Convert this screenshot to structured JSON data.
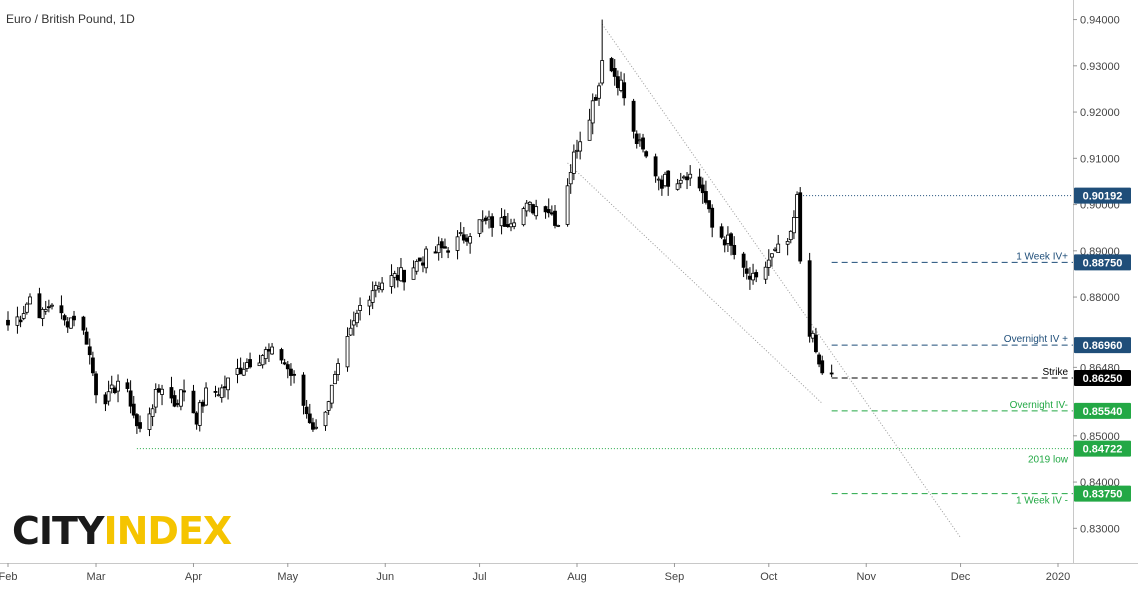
{
  "window": {
    "title": "Euro / British Pound, 1D"
  },
  "logo": {
    "part1": "CITY",
    "part2": "INDEX"
  },
  "chart_data": {
    "type": "candlestick",
    "title": "Euro / British Pound, 1D",
    "instrument": "Euro / British Pound",
    "interval": "1D",
    "ylim": [
      0.8225,
      0.9425
    ],
    "y_ticks": [
      "0.83000",
      "0.84000",
      "0.85000",
      "0.86480",
      "0.88000",
      "0.89000",
      "0.90000",
      "0.91000",
      "0.92000",
      "0.93000",
      "0.94000"
    ],
    "x_ticks": [
      "Feb",
      "Mar",
      "Apr",
      "May",
      "Jun",
      "Jul",
      "Aug",
      "Sep",
      "Oct",
      "Nov",
      "Dec",
      "2020"
    ],
    "grid": false,
    "colors": {
      "up_candle": "#ffffff",
      "down_candle": "#000000",
      "navy": "#1f4e79",
      "green": "#23a845",
      "dashed_black": "#333333"
    },
    "price_path": [
      [
        "2019-02-01",
        0.874
      ],
      [
        "2019-02-05",
        0.876
      ],
      [
        "2019-02-08",
        0.88
      ],
      [
        "2019-02-12",
        0.876
      ],
      [
        "2019-02-15",
        0.879
      ],
      [
        "2019-02-19",
        0.8745
      ],
      [
        "2019-02-22",
        0.876
      ],
      [
        "2019-02-26",
        0.871
      ],
      [
        "2019-03-01",
        0.86
      ],
      [
        "2019-03-05",
        0.858
      ],
      [
        "2019-03-08",
        0.862
      ],
      [
        "2019-03-12",
        0.8575
      ],
      [
        "2019-03-14",
        0.852
      ],
      [
        "2019-03-15",
        0.851
      ],
      [
        "2019-03-19",
        0.857
      ],
      [
        "2019-03-22",
        0.861
      ],
      [
        "2019-03-26",
        0.857
      ],
      [
        "2019-03-29",
        0.86
      ],
      [
        "2019-04-02",
        0.854
      ],
      [
        "2019-04-05",
        0.859
      ],
      [
        "2019-04-10",
        0.86
      ],
      [
        "2019-04-15",
        0.864
      ],
      [
        "2019-04-18",
        0.866
      ],
      [
        "2019-04-24",
        0.868
      ],
      [
        "2019-04-29",
        0.867
      ],
      [
        "2019-05-03",
        0.862
      ],
      [
        "2019-05-07",
        0.855
      ],
      [
        "2019-05-10",
        0.851
      ],
      [
        "2019-05-15",
        0.86
      ],
      [
        "2019-05-20",
        0.87
      ],
      [
        "2019-05-24",
        0.878
      ],
      [
        "2019-05-29",
        0.883
      ],
      [
        "2019-06-03",
        0.884
      ],
      [
        "2019-06-07",
        0.885
      ],
      [
        "2019-06-12",
        0.888
      ],
      [
        "2019-06-18",
        0.89
      ],
      [
        "2019-06-24",
        0.892
      ],
      [
        "2019-07-01",
        0.896
      ],
      [
        "2019-07-08",
        0.896
      ],
      [
        "2019-07-15",
        0.899
      ],
      [
        "2019-07-22",
        0.9
      ],
      [
        "2019-07-26",
        0.896
      ],
      [
        "2019-07-29",
        0.905
      ],
      [
        "2019-08-01",
        0.913
      ],
      [
        "2019-08-05",
        0.92
      ],
      [
        "2019-08-08",
        0.926
      ],
      [
        "2019-08-09",
        0.9325
      ],
      [
        "2019-08-12",
        0.929
      ],
      [
        "2019-08-15",
        0.926
      ],
      [
        "2019-08-19",
        0.915
      ],
      [
        "2019-08-23",
        0.91
      ],
      [
        "2019-08-28",
        0.905
      ],
      [
        "2019-09-02",
        0.906
      ],
      [
        "2019-09-05",
        0.907
      ],
      [
        "2019-09-10",
        0.903
      ],
      [
        "2019-09-13",
        0.895
      ],
      [
        "2019-09-18",
        0.892
      ],
      [
        "2019-09-23",
        0.885
      ],
      [
        "2019-09-27",
        0.883
      ],
      [
        "2019-10-01",
        0.888
      ],
      [
        "2019-10-04",
        0.89
      ],
      [
        "2019-10-08",
        0.8925
      ],
      [
        "2019-10-10",
        0.901
      ],
      [
        "2019-10-11",
        0.888
      ],
      [
        "2019-10-14",
        0.873
      ],
      [
        "2019-10-16",
        0.868
      ],
      [
        "2019-10-17",
        0.865
      ],
      [
        "2019-10-18",
        0.864
      ],
      [
        "2019-10-21",
        0.8625
      ]
    ],
    "peak": {
      "date": "2019-08-09",
      "high": 0.94
    },
    "trendlines": [
      {
        "from": [
          "2019-08-09",
          0.939
        ],
        "to": [
          "2019-12-01",
          0.828
        ]
      },
      {
        "from": [
          "2019-07-29",
          0.909
        ],
        "to": [
          "2019-10-18",
          0.857
        ]
      }
    ],
    "levels": [
      {
        "label": "",
        "value": 0.90192,
        "value_label": "0.90192",
        "style": "dotted",
        "color": "#1f4e79",
        "from_date": "2019-10-10"
      },
      {
        "label": "1 Week IV+",
        "value": 0.8875,
        "value_label": "0.88750",
        "style": "dashed",
        "color": "#1f4e79",
        "from_date": "2019-10-21"
      },
      {
        "label": "Overnight IV +",
        "value": 0.8696,
        "value_label": "0.86960",
        "style": "dashed",
        "color": "#1f4e79",
        "from_date": "2019-10-21"
      },
      {
        "label": "Strike",
        "value": 0.8625,
        "value_label": "0.86250",
        "style": "dashed",
        "color": "#000000",
        "from_date": "2019-10-21"
      },
      {
        "label": "Overnight IV-",
        "value": 0.8554,
        "value_label": "0.85540",
        "style": "dashed",
        "color": "#23a845",
        "from_date": "2019-10-21"
      },
      {
        "label": "2019 low",
        "value": 0.84722,
        "value_label": "0.84722",
        "style": "dotted",
        "color": "#23a845",
        "from_date": "2019-03-14"
      },
      {
        "label": "1 Week IV -",
        "value": 0.8375,
        "value_label": "0.83750",
        "style": "dashed",
        "color": "#23a845",
        "from_date": "2019-10-21"
      }
    ]
  }
}
